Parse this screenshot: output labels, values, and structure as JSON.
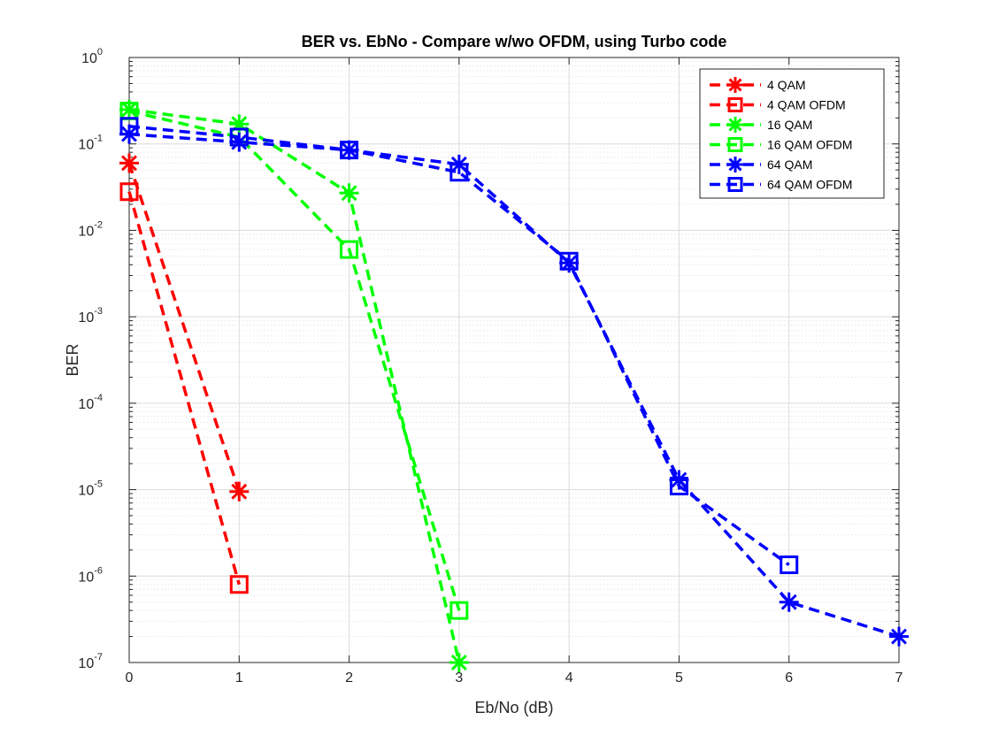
{
  "chart_data": {
    "type": "line",
    "title": "BER vs. EbNo - Compare w/wo OFDM, using Turbo code",
    "xlabel": "Eb/No (dB)",
    "ylabel": "BER",
    "xlim": [
      0,
      7
    ],
    "ylim": [
      1e-07,
      1
    ],
    "yscale": "log",
    "xticks": [
      "0",
      "1",
      "2",
      "3",
      "4",
      "5",
      "6",
      "7"
    ],
    "yticks": [
      {
        "base": "10",
        "exp": "0"
      },
      {
        "base": "10",
        "exp": "-1"
      },
      {
        "base": "10",
        "exp": "-2"
      },
      {
        "base": "10",
        "exp": "-3"
      },
      {
        "base": "10",
        "exp": "-4"
      },
      {
        "base": "10",
        "exp": "-5"
      },
      {
        "base": "10",
        "exp": "-6"
      },
      {
        "base": "10",
        "exp": "-7"
      }
    ],
    "grid": true,
    "legend_position": "top-right",
    "series": [
      {
        "name": "4 QAM",
        "color": "#ff0000",
        "marker": "asterisk",
        "x": [
          0,
          1
        ],
        "y": [
          0.06,
          9.5e-06
        ]
      },
      {
        "name": "4 QAM OFDM",
        "color": "#ff0000",
        "marker": "square",
        "x": [
          0,
          1
        ],
        "y": [
          0.028,
          8e-07
        ]
      },
      {
        "name": "16 QAM",
        "color": "#00ff00",
        "marker": "asterisk",
        "x": [
          0,
          1,
          2,
          3
        ],
        "y": [
          0.25,
          0.17,
          0.027,
          1e-07
        ]
      },
      {
        "name": "16 QAM OFDM",
        "color": "#00ff00",
        "marker": "square",
        "x": [
          0,
          1,
          2,
          3
        ],
        "y": [
          0.24,
          0.12,
          0.006,
          4e-07
        ]
      },
      {
        "name": "64 QAM",
        "color": "#0000ff",
        "marker": "asterisk",
        "x": [
          0,
          1,
          2,
          3,
          4,
          5,
          6,
          7
        ],
        "y": [
          0.13,
          0.105,
          0.085,
          0.058,
          0.0042,
          1.3e-05,
          5e-07,
          2e-07
        ]
      },
      {
        "name": "64 QAM OFDM",
        "color": "#0000ff",
        "marker": "square",
        "x": [
          0,
          1,
          2,
          3,
          4,
          5,
          6
        ],
        "y": [
          0.16,
          0.12,
          0.085,
          0.047,
          0.0044,
          1.1e-05,
          1.35e-06
        ]
      }
    ]
  }
}
